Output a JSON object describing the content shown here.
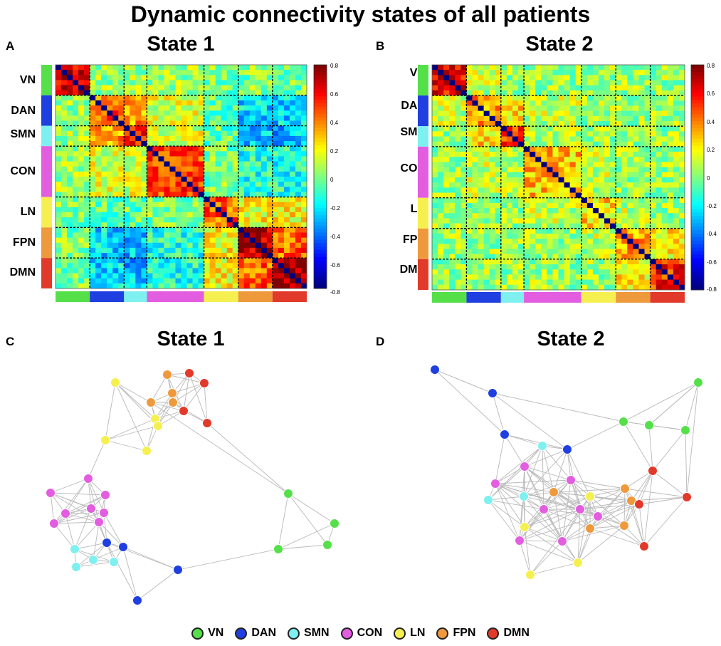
{
  "title": "Dynamic connectivity states of all patients",
  "panels": {
    "A": {
      "letter": "A",
      "title": "State 1"
    },
    "B": {
      "letter": "B",
      "title": "State 2"
    },
    "C": {
      "letter": "C",
      "title": "State 1"
    },
    "D": {
      "letter": "D",
      "title": "State 2"
    }
  },
  "networks": [
    {
      "key": "VN",
      "label": "VN",
      "color": "#55e04a"
    },
    {
      "key": "DAN",
      "label": "DAN",
      "color": "#1f3fe0"
    },
    {
      "key": "SMN",
      "label": "SMN",
      "color": "#7ef0f0"
    },
    {
      "key": "CON",
      "label": "CON",
      "color": "#e35de0"
    },
    {
      "key": "LN",
      "label": "LN",
      "color": "#f5f050"
    },
    {
      "key": "FPN",
      "label": "FPN",
      "color": "#ee9a3c"
    },
    {
      "key": "DMN",
      "label": "DMN",
      "color": "#e23a2a"
    }
  ],
  "colorbar": {
    "ticks": [
      "0.8",
      "0.6",
      "0.4",
      "0.2",
      "0",
      "-0.2",
      "-0.4",
      "-0.6",
      "-0.8"
    ],
    "min": -0.8,
    "max": 0.8
  },
  "chart_data": [
    {
      "type": "heatmap",
      "panel": "A",
      "title": "State 1",
      "rows": [
        "VN",
        "DAN",
        "SMN",
        "CON",
        "LN",
        "FPN",
        "DMN"
      ],
      "cols": [
        "VN",
        "DAN",
        "SMN",
        "CON",
        "LN",
        "FPN",
        "DMN"
      ],
      "network_sizes": [
        3,
        3,
        2,
        5,
        3,
        3,
        3
      ],
      "within_network_mean": [
        0.65,
        0.45,
        0.55,
        0.5,
        0.45,
        0.7,
        0.75
      ],
      "between_network_mean": [
        [
          0.65,
          0.05,
          0.05,
          0.05,
          0.0,
          0.0,
          0.0
        ],
        [
          0.05,
          0.45,
          0.35,
          0.15,
          -0.05,
          -0.25,
          -0.25
        ],
        [
          0.05,
          0.35,
          0.55,
          0.15,
          -0.05,
          -0.3,
          -0.3
        ],
        [
          0.05,
          0.15,
          0.15,
          0.5,
          0.0,
          -0.15,
          -0.15
        ],
        [
          0.0,
          -0.05,
          -0.05,
          0.0,
          0.45,
          0.2,
          0.2
        ],
        [
          0.0,
          -0.25,
          -0.3,
          -0.15,
          0.2,
          0.7,
          0.45
        ],
        [
          0.0,
          -0.25,
          -0.3,
          -0.15,
          0.2,
          0.45,
          0.75
        ]
      ],
      "diagonal": -0.8,
      "zlim": [
        -0.8,
        0.8
      ]
    },
    {
      "type": "heatmap",
      "panel": "B",
      "title": "State 2",
      "rows": [
        "VN",
        "DAN",
        "SMN",
        "CON",
        "LN",
        "FPN",
        "DMN"
      ],
      "cols": [
        "VN",
        "DAN",
        "SMN",
        "CON",
        "LN",
        "FPN",
        "DMN"
      ],
      "network_sizes": [
        3,
        3,
        2,
        5,
        3,
        3,
        3
      ],
      "within_network_mean": [
        0.6,
        0.35,
        0.5,
        0.3,
        0.25,
        0.35,
        0.55
      ],
      "between_network_mean": [
        [
          0.6,
          0.1,
          0.05,
          0.05,
          0.05,
          0.05,
          0.05
        ],
        [
          0.1,
          0.35,
          0.25,
          0.1,
          0.05,
          0.05,
          0.05
        ],
        [
          0.05,
          0.25,
          0.5,
          0.1,
          0.05,
          0.05,
          0.05
        ],
        [
          0.05,
          0.1,
          0.1,
          0.3,
          0.1,
          0.05,
          0.05
        ],
        [
          0.05,
          0.05,
          0.05,
          0.1,
          0.25,
          0.1,
          0.05
        ],
        [
          0.05,
          0.05,
          0.05,
          0.05,
          0.1,
          0.35,
          0.2
        ],
        [
          0.05,
          0.05,
          0.05,
          0.05,
          0.05,
          0.2,
          0.55
        ]
      ],
      "diagonal": -0.8,
      "zlim": [
        -0.8,
        0.8
      ]
    },
    {
      "type": "network",
      "panel": "C",
      "title": "State 1",
      "nodes": [
        {
          "id": "VN1",
          "net": "VN"
        },
        {
          "id": "VN2",
          "net": "VN"
        },
        {
          "id": "VN3",
          "net": "VN"
        },
        {
          "id": "VN4",
          "net": "VN"
        },
        {
          "id": "DAN1",
          "net": "DAN"
        },
        {
          "id": "DAN2",
          "net": "DAN"
        },
        {
          "id": "DAN3",
          "net": "DAN"
        },
        {
          "id": "DAN4",
          "net": "DAN"
        },
        {
          "id": "SMN1",
          "net": "SMN"
        },
        {
          "id": "SMN2",
          "net": "SMN"
        },
        {
          "id": "SMN3",
          "net": "SMN"
        },
        {
          "id": "SMN4",
          "net": "SMN"
        },
        {
          "id": "CON1",
          "net": "CON"
        },
        {
          "id": "CON2",
          "net": "CON"
        },
        {
          "id": "CON3",
          "net": "CON"
        },
        {
          "id": "CON4",
          "net": "CON"
        },
        {
          "id": "CON5",
          "net": "CON"
        },
        {
          "id": "CON6",
          "net": "CON"
        },
        {
          "id": "CON7",
          "net": "CON"
        },
        {
          "id": "CON8",
          "net": "CON"
        },
        {
          "id": "LN1",
          "net": "LN"
        },
        {
          "id": "LN2",
          "net": "LN"
        },
        {
          "id": "LN3",
          "net": "LN"
        },
        {
          "id": "LN4",
          "net": "LN"
        },
        {
          "id": "LN5",
          "net": "LN"
        },
        {
          "id": "FPN1",
          "net": "FPN"
        },
        {
          "id": "FPN2",
          "net": "FPN"
        },
        {
          "id": "FPN3",
          "net": "FPN"
        },
        {
          "id": "FPN4",
          "net": "FPN"
        },
        {
          "id": "DMN1",
          "net": "DMN"
        },
        {
          "id": "DMN2",
          "net": "DMN"
        },
        {
          "id": "DMN3",
          "net": "DMN"
        },
        {
          "id": "DMN4",
          "net": "DMN"
        }
      ]
    },
    {
      "type": "network",
      "panel": "D",
      "title": "State 2",
      "nodes": [
        {
          "id": "VN1",
          "net": "VN"
        },
        {
          "id": "VN2",
          "net": "VN"
        },
        {
          "id": "VN3",
          "net": "VN"
        },
        {
          "id": "VN4",
          "net": "VN"
        },
        {
          "id": "DAN1",
          "net": "DAN"
        },
        {
          "id": "DAN2",
          "net": "DAN"
        },
        {
          "id": "DAN3",
          "net": "DAN"
        },
        {
          "id": "DAN4",
          "net": "DAN"
        },
        {
          "id": "SMN1",
          "net": "SMN"
        },
        {
          "id": "SMN2",
          "net": "SMN"
        },
        {
          "id": "SMN3",
          "net": "SMN"
        },
        {
          "id": "CON1",
          "net": "CON"
        },
        {
          "id": "CON2",
          "net": "CON"
        },
        {
          "id": "CON3",
          "net": "CON"
        },
        {
          "id": "CON4",
          "net": "CON"
        },
        {
          "id": "CON5",
          "net": "CON"
        },
        {
          "id": "CON6",
          "net": "CON"
        },
        {
          "id": "CON7",
          "net": "CON"
        },
        {
          "id": "CON8",
          "net": "CON"
        },
        {
          "id": "LN1",
          "net": "LN"
        },
        {
          "id": "LN2",
          "net": "LN"
        },
        {
          "id": "LN3",
          "net": "LN"
        },
        {
          "id": "LN4",
          "net": "LN"
        },
        {
          "id": "FPN1",
          "net": "FPN"
        },
        {
          "id": "FPN2",
          "net": "FPN"
        },
        {
          "id": "FPN3",
          "net": "FPN"
        },
        {
          "id": "FPN4",
          "net": "FPN"
        },
        {
          "id": "FPN5",
          "net": "FPN"
        },
        {
          "id": "DMN1",
          "net": "DMN"
        },
        {
          "id": "DMN2",
          "net": "DMN"
        },
        {
          "id": "DMN3",
          "net": "DMN"
        },
        {
          "id": "DMN4",
          "net": "DMN"
        }
      ]
    }
  ]
}
